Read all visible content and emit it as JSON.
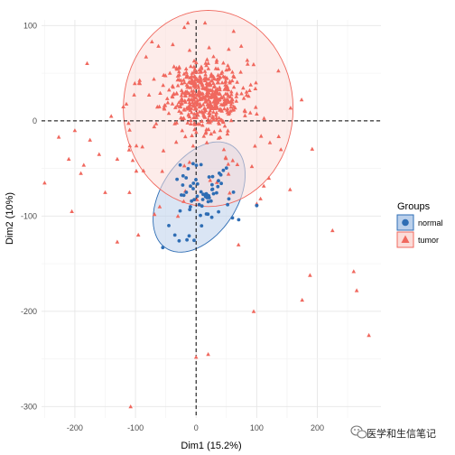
{
  "chart_data": {
    "type": "scatter",
    "xlabel": "Dim1 (15.2%)",
    "ylabel": "Dim2 (10%)",
    "xlim": [
      -255,
      305
    ],
    "ylim": [
      -312,
      106
    ],
    "x_ticks": [
      "-200",
      "-100",
      "0",
      "100",
      "200"
    ],
    "x_tick_values": [
      -200,
      -100,
      0,
      100,
      200
    ],
    "y_ticks": [
      "100",
      "0",
      "-100",
      "-200",
      "-300"
    ],
    "y_tick_values": [
      100,
      0,
      -100,
      -200,
      -300
    ],
    "grid": true,
    "reference_lines": {
      "x": 0,
      "y": 0,
      "style": "dashed"
    },
    "legend": {
      "title": "Groups",
      "position": "right",
      "entries": [
        {
          "label": "normal",
          "color": "#2E6DB4",
          "marker": "circle"
        },
        {
          "label": "tumor",
          "color": "#F0685E",
          "marker": "triangle"
        }
      ]
    },
    "ellipses": [
      {
        "group": "normal",
        "cx": 5,
        "cy": -80,
        "rx": 82,
        "ry": 49,
        "angle_deg": 28,
        "stroke": "#2E6DB4",
        "fill": "#BBD0EB"
      },
      {
        "group": "tumor",
        "cx": 20,
        "cy": 13,
        "rx": 140,
        "ry": 103,
        "angle_deg": 0,
        "stroke": "#F0685E",
        "fill": "#FBDCD9"
      }
    ],
    "series": [
      {
        "name": "normal",
        "marker": "circle",
        "color": "#2E6DB4",
        "cluster": {
          "mean": [
            8,
            -78
          ],
          "sd": [
            20,
            17
          ],
          "n": 60,
          "seed": 7
        },
        "points": [
          [
            -55,
            -133
          ],
          [
            -35,
            -120
          ],
          [
            -28,
            -126
          ],
          [
            -15,
            -125
          ],
          [
            100,
            -89
          ],
          [
            52,
            -88
          ],
          [
            60,
            -102
          ],
          [
            -45,
            -110
          ],
          [
            45,
            -52
          ],
          [
            -5,
            -45
          ]
        ]
      },
      {
        "name": "tumor",
        "marker": "triangle",
        "color": "#F0685E",
        "cluster": {
          "mean": [
            15,
            28
          ],
          "sd": [
            30,
            18
          ],
          "n": 480,
          "seed": 11
        },
        "spread": {
          "mean": [
            -10,
            -5
          ],
          "sd": [
            80,
            45
          ],
          "n": 90,
          "seed": 23
        },
        "points": [
          [
            -250,
            -65
          ],
          [
            -210,
            -40
          ],
          [
            -130,
            -127
          ],
          [
            -108,
            -300
          ],
          [
            -190,
            -55
          ],
          [
            -205,
            -95
          ],
          [
            -160,
            -35
          ],
          [
            -150,
            -75
          ],
          [
            -175,
            -20
          ],
          [
            -200,
            -10
          ],
          [
            -120,
            15
          ],
          [
            -140,
            5
          ],
          [
            175,
            -188
          ],
          [
            188,
            -162
          ],
          [
            225,
            -115
          ],
          [
            260,
            -158
          ],
          [
            265,
            -178
          ],
          [
            285,
            -225
          ],
          [
            155,
            -72
          ],
          [
            100,
            -87
          ],
          [
            95,
            -200
          ],
          [
            20,
            -245
          ],
          [
            0,
            -248
          ],
          [
            -110,
            -75
          ],
          [
            -130,
            -40
          ],
          [
            -60,
            -90
          ],
          [
            -30,
            -100
          ],
          [
            70,
            -130
          ],
          [
            120,
            -60
          ],
          [
            140,
            -30
          ]
        ]
      }
    ]
  },
  "watermark": {
    "text": "医学和生信笔记"
  }
}
